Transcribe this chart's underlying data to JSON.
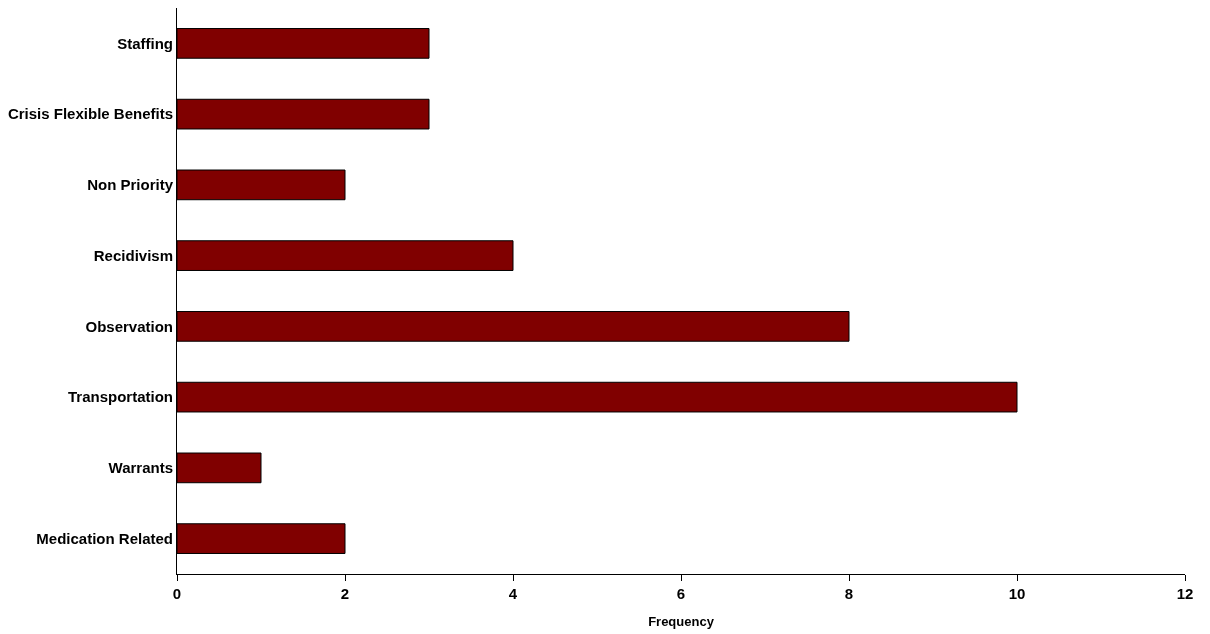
{
  "chart_data": {
    "type": "bar",
    "orientation": "horizontal",
    "xlabel": "Frequency",
    "categories": [
      "Staffing",
      "Crisis Flexible Benefits",
      "Non Priority",
      "Recidivism",
      "Observation",
      "Transportation",
      "Warrants",
      "Medication Related"
    ],
    "values": [
      3,
      3,
      2,
      4,
      8,
      10,
      1,
      2
    ],
    "color": "#800000",
    "xlim": [
      0,
      12
    ],
    "xticks": [
      0,
      2,
      4,
      6,
      8,
      10,
      12
    ]
  }
}
